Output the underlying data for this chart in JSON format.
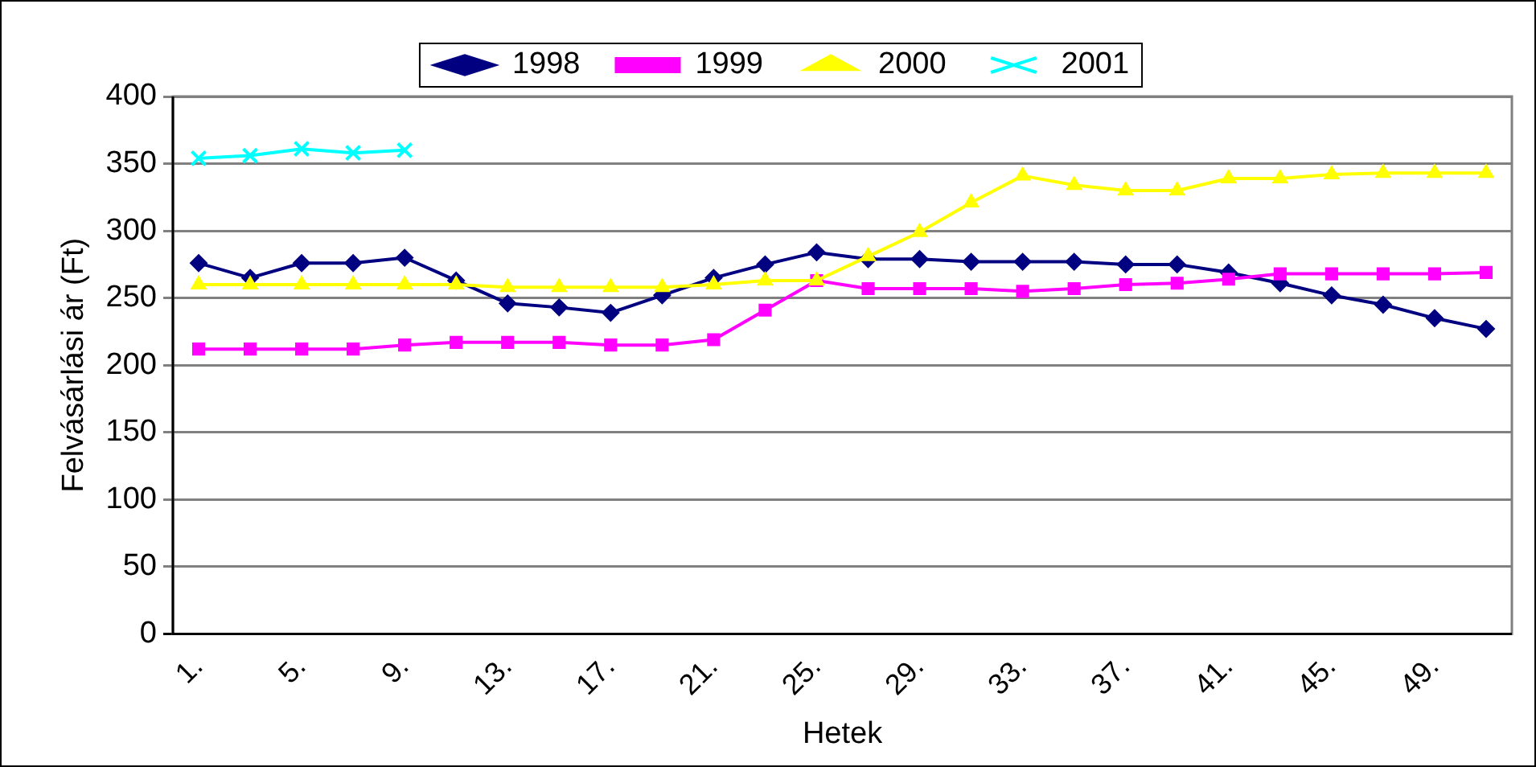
{
  "chart_data": {
    "type": "line",
    "xlabel": "Hetek",
    "ylabel": "Felvásárlási ár (Ft)",
    "categories": [
      "1.",
      null,
      "5.",
      null,
      "9.",
      null,
      "13.",
      null,
      "17.",
      null,
      "21.",
      null,
      "25.",
      null,
      "29.",
      null,
      "33.",
      null,
      "37.",
      null,
      "41.",
      null,
      "45.",
      null,
      "49.",
      null
    ],
    "ylim": [
      0,
      400
    ],
    "yticks": [
      0,
      50,
      100,
      150,
      200,
      250,
      300,
      350,
      400
    ],
    "grid": "y",
    "legend": "top",
    "series": [
      {
        "name": "1998",
        "color": "#000080",
        "marker": "diamond",
        "values": [
          276,
          265,
          276,
          276,
          280,
          263,
          246,
          243,
          239,
          252,
          265,
          275,
          284,
          279,
          279,
          277,
          277,
          277,
          275,
          275,
          269,
          261,
          252,
          245,
          235,
          227
        ]
      },
      {
        "name": "1999",
        "color": "#ff00ff",
        "marker": "square",
        "values": [
          212,
          212,
          212,
          212,
          215,
          217,
          217,
          217,
          215,
          215,
          219,
          241,
          263,
          257,
          257,
          257,
          255,
          257,
          260,
          261,
          264,
          268,
          268,
          268,
          268,
          269
        ]
      },
      {
        "name": "2000",
        "color": "#ffff00",
        "marker": "triangle",
        "values": [
          260,
          260,
          260,
          260,
          260,
          260,
          258,
          258,
          258,
          258,
          260,
          263,
          263,
          281,
          299,
          321,
          341,
          334,
          330,
          330,
          339,
          339,
          342,
          343,
          343,
          343
        ]
      },
      {
        "name": "2001",
        "color": "#00ffff",
        "marker": "cross",
        "values": [
          354,
          356,
          361,
          358,
          360,
          null,
          null,
          null,
          null,
          null,
          null,
          null,
          null,
          null,
          null,
          null,
          null,
          null,
          null,
          null,
          null,
          null,
          null,
          null,
          null,
          null
        ]
      }
    ]
  }
}
